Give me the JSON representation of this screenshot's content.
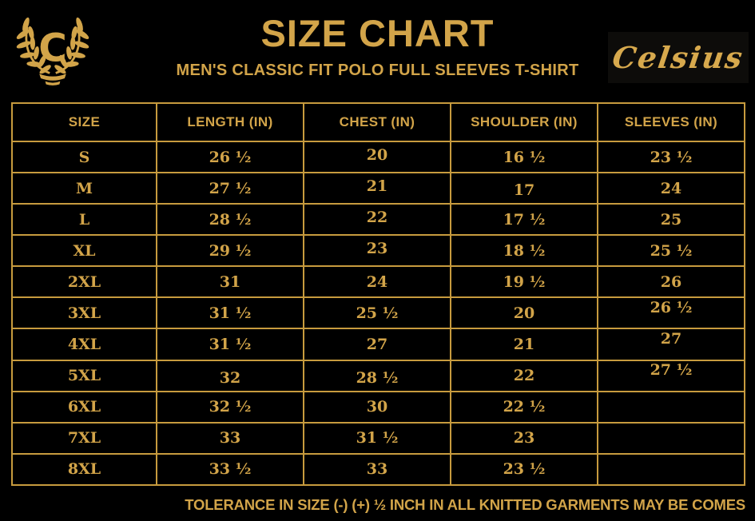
{
  "colors": {
    "background": "#000000",
    "gold_text": "#d2a449",
    "gold_border": "#c79b3e"
  },
  "header": {
    "title": "SIZE CHART",
    "subtitle": "MEN'S CLASSIC FIT POLO FULL SLEEVES T-SHIRT",
    "brand": "Celsius",
    "logo_letter": "C"
  },
  "table": {
    "columns": [
      "SIZE",
      "LENGTH (IN)",
      "CHEST (IN)",
      "SHOULDER (IN)",
      "SLEEVES (IN)"
    ],
    "rows": [
      {
        "size": "S",
        "length": "26 ½",
        "chest": "20",
        "shoulder": "16 ½",
        "sleeves": "23 ½"
      },
      {
        "size": "M",
        "length": "27 ½",
        "chest": "21",
        "shoulder": "17",
        "sleeves": "24"
      },
      {
        "size": "L",
        "length": "28 ½",
        "chest": "22",
        "shoulder": "17 ½",
        "sleeves": "25"
      },
      {
        "size": "XL",
        "length": "29 ½",
        "chest": "23",
        "shoulder": "18 ½",
        "sleeves": "25 ½"
      },
      {
        "size": "2XL",
        "length": "31",
        "chest": "24",
        "shoulder": "19 ½",
        "sleeves": "26"
      },
      {
        "size": "3XL",
        "length": "31 ½",
        "chest": "25 ½",
        "shoulder": "20",
        "sleeves": "26 ½"
      },
      {
        "size": "4XL",
        "length": "31 ½",
        "chest": "27",
        "shoulder": "21",
        "sleeves": "27"
      },
      {
        "size": "5XL",
        "length": "32",
        "chest": "28 ½",
        "shoulder": "22",
        "sleeves": "27 ½"
      },
      {
        "size": "6XL",
        "length": "32 ½",
        "chest": "30",
        "shoulder": "22 ½",
        "sleeves": ""
      },
      {
        "size": "7XL",
        "length": "33",
        "chest": "31 ½",
        "shoulder": "23",
        "sleeves": ""
      },
      {
        "size": "8XL",
        "length": "33 ½",
        "chest": "33",
        "shoulder": "23 ½",
        "sleeves": ""
      }
    ]
  },
  "footer": {
    "note": "TOLERANCE IN SIZE (-) (+)  ½ INCH IN ALL KNITTED GARMENTS MAY BE COMES"
  }
}
